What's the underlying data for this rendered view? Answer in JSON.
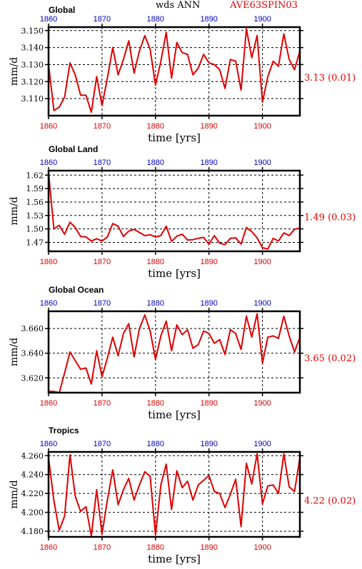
{
  "header": {
    "center_label": "wds ANN",
    "right_label": "AVE63SPIN03"
  },
  "colors": {
    "line": "#e00000",
    "top_ticks": "#0000c8",
    "bottom_ticks": "#e00000",
    "annotation": "#e00000",
    "grid": "#000000"
  },
  "chart_data": [
    {
      "type": "line",
      "title": "Global",
      "xlabel": "time [yrs]",
      "ylabel": "mm/d",
      "xlim": [
        1860,
        1907
      ],
      "ylim": [
        3.1,
        3.152
      ],
      "xticks": [
        1860,
        1870,
        1880,
        1890,
        1900
      ],
      "yticks": [
        "3.110",
        "3.120",
        "3.130",
        "3.140",
        "3.150"
      ],
      "annotation": "3.13 (0.01)",
      "grid": true,
      "x": [
        1860,
        1861,
        1862,
        1863,
        1864,
        1865,
        1866,
        1867,
        1868,
        1869,
        1870,
        1871,
        1872,
        1873,
        1874,
        1875,
        1876,
        1877,
        1878,
        1879,
        1880,
        1881,
        1882,
        1883,
        1884,
        1885,
        1886,
        1887,
        1888,
        1889,
        1890,
        1891,
        1892,
        1893,
        1894,
        1895,
        1896,
        1897,
        1898,
        1899,
        1900,
        1901,
        1902,
        1903,
        1904,
        1905,
        1906,
        1907
      ],
      "values": [
        3.13,
        3.103,
        3.105,
        3.111,
        3.131,
        3.124,
        3.112,
        3.112,
        3.102,
        3.123,
        3.106,
        3.122,
        3.14,
        3.124,
        3.133,
        3.144,
        3.125,
        3.138,
        3.147,
        3.139,
        3.118,
        3.132,
        3.149,
        3.122,
        3.143,
        3.137,
        3.136,
        3.124,
        3.128,
        3.136,
        3.131,
        3.13,
        3.127,
        3.116,
        3.133,
        3.132,
        3.115,
        3.151,
        3.134,
        3.147,
        3.108,
        3.123,
        3.132,
        3.129,
        3.148,
        3.133,
        3.127,
        3.138
      ]
    },
    {
      "type": "line",
      "title": "Global Land",
      "xlabel": "time [yrs]",
      "ylabel": "mm/d",
      "xlim": [
        1860,
        1907
      ],
      "ylim": [
        1.45,
        1.63
      ],
      "xticks": [
        1860,
        1870,
        1880,
        1890,
        1900
      ],
      "yticks": [
        "1.47",
        "1.50",
        "1.53",
        "1.56",
        "1.59",
        "1.62"
      ],
      "annotation": "1.49 (0.03)",
      "grid": true,
      "x": [
        1860,
        1861,
        1862,
        1863,
        1864,
        1865,
        1866,
        1867,
        1868,
        1869,
        1870,
        1871,
        1872,
        1873,
        1874,
        1875,
        1876,
        1877,
        1878,
        1879,
        1880,
        1881,
        1882,
        1883,
        1884,
        1885,
        1886,
        1887,
        1888,
        1889,
        1890,
        1891,
        1892,
        1893,
        1894,
        1895,
        1896,
        1897,
        1898,
        1899,
        1900,
        1901,
        1902,
        1903,
        1904,
        1905,
        1906,
        1907
      ],
      "values": [
        1.625,
        1.5,
        1.508,
        1.488,
        1.515,
        1.503,
        1.483,
        1.482,
        1.473,
        1.478,
        1.473,
        1.482,
        1.512,
        1.506,
        1.483,
        1.495,
        1.499,
        1.492,
        1.485,
        1.487,
        1.482,
        1.485,
        1.506,
        1.472,
        1.484,
        1.488,
        1.475,
        1.476,
        1.479,
        1.481,
        1.466,
        1.485,
        1.468,
        1.465,
        1.479,
        1.48,
        1.466,
        1.503,
        1.494,
        1.48,
        1.458,
        1.455,
        1.479,
        1.473,
        1.491,
        1.485,
        1.499,
        1.502
      ]
    },
    {
      "type": "line",
      "title": "Global Ocean",
      "xlabel": "time [yrs]",
      "ylabel": "mm/d",
      "xlim": [
        1860,
        1907
      ],
      "ylim": [
        3.608,
        3.674
      ],
      "xticks": [
        1860,
        1870,
        1880,
        1890,
        1900
      ],
      "yticks": [
        "3.620",
        "3.640",
        "3.660"
      ],
      "annotation": "3.65 (0.02)",
      "grid": true,
      "x": [
        1860,
        1861,
        1862,
        1863,
        1864,
        1865,
        1866,
        1867,
        1868,
        1869,
        1870,
        1871,
        1872,
        1873,
        1874,
        1875,
        1876,
        1877,
        1878,
        1879,
        1880,
        1881,
        1882,
        1883,
        1884,
        1885,
        1886,
        1887,
        1888,
        1889,
        1890,
        1891,
        1892,
        1893,
        1894,
        1895,
        1896,
        1897,
        1898,
        1899,
        1900,
        1901,
        1902,
        1903,
        1904,
        1905,
        1906,
        1907
      ],
      "values": [
        3.609,
        3.609,
        3.608,
        3.624,
        3.641,
        3.634,
        3.627,
        3.628,
        3.615,
        3.642,
        3.621,
        3.636,
        3.653,
        3.638,
        3.656,
        3.664,
        3.637,
        3.66,
        3.671,
        3.658,
        3.635,
        3.654,
        3.666,
        3.642,
        3.663,
        3.655,
        3.659,
        3.644,
        3.647,
        3.658,
        3.656,
        3.648,
        3.651,
        3.639,
        3.659,
        3.656,
        3.643,
        3.67,
        3.653,
        3.672,
        3.632,
        3.653,
        3.654,
        3.652,
        3.67,
        3.654,
        3.641,
        3.653
      ]
    },
    {
      "type": "line",
      "title": "Tropics",
      "xlabel": "time [yrs]",
      "ylabel": "mm/d",
      "xlim": [
        1860,
        1907
      ],
      "ylim": [
        4.174,
        4.264
      ],
      "xticks": [
        1860,
        1870,
        1880,
        1890,
        1900
      ],
      "yticks": [
        "4.180",
        "4.200",
        "4.220",
        "4.240",
        "4.260"
      ],
      "annotation": "4.22 (0.02)",
      "grid": true,
      "x": [
        1860,
        1861,
        1862,
        1863,
        1864,
        1865,
        1866,
        1867,
        1868,
        1869,
        1870,
        1871,
        1872,
        1873,
        1874,
        1875,
        1876,
        1877,
        1878,
        1879,
        1880,
        1881,
        1882,
        1883,
        1884,
        1885,
        1886,
        1887,
        1888,
        1889,
        1890,
        1891,
        1892,
        1893,
        1894,
        1895,
        1896,
        1897,
        1898,
        1899,
        1900,
        1901,
        1902,
        1903,
        1904,
        1905,
        1906,
        1907
      ],
      "values": [
        4.258,
        4.212,
        4.181,
        4.196,
        4.261,
        4.217,
        4.201,
        4.206,
        4.175,
        4.224,
        4.177,
        4.213,
        4.245,
        4.208,
        4.224,
        4.236,
        4.213,
        4.229,
        4.243,
        4.238,
        4.176,
        4.229,
        4.251,
        4.203,
        4.244,
        4.226,
        4.233,
        4.213,
        4.229,
        4.234,
        4.239,
        4.222,
        4.22,
        4.205,
        4.219,
        4.235,
        4.185,
        4.252,
        4.23,
        4.262,
        4.209,
        4.228,
        4.229,
        4.22,
        4.262,
        4.227,
        4.222,
        4.258
      ]
    }
  ]
}
